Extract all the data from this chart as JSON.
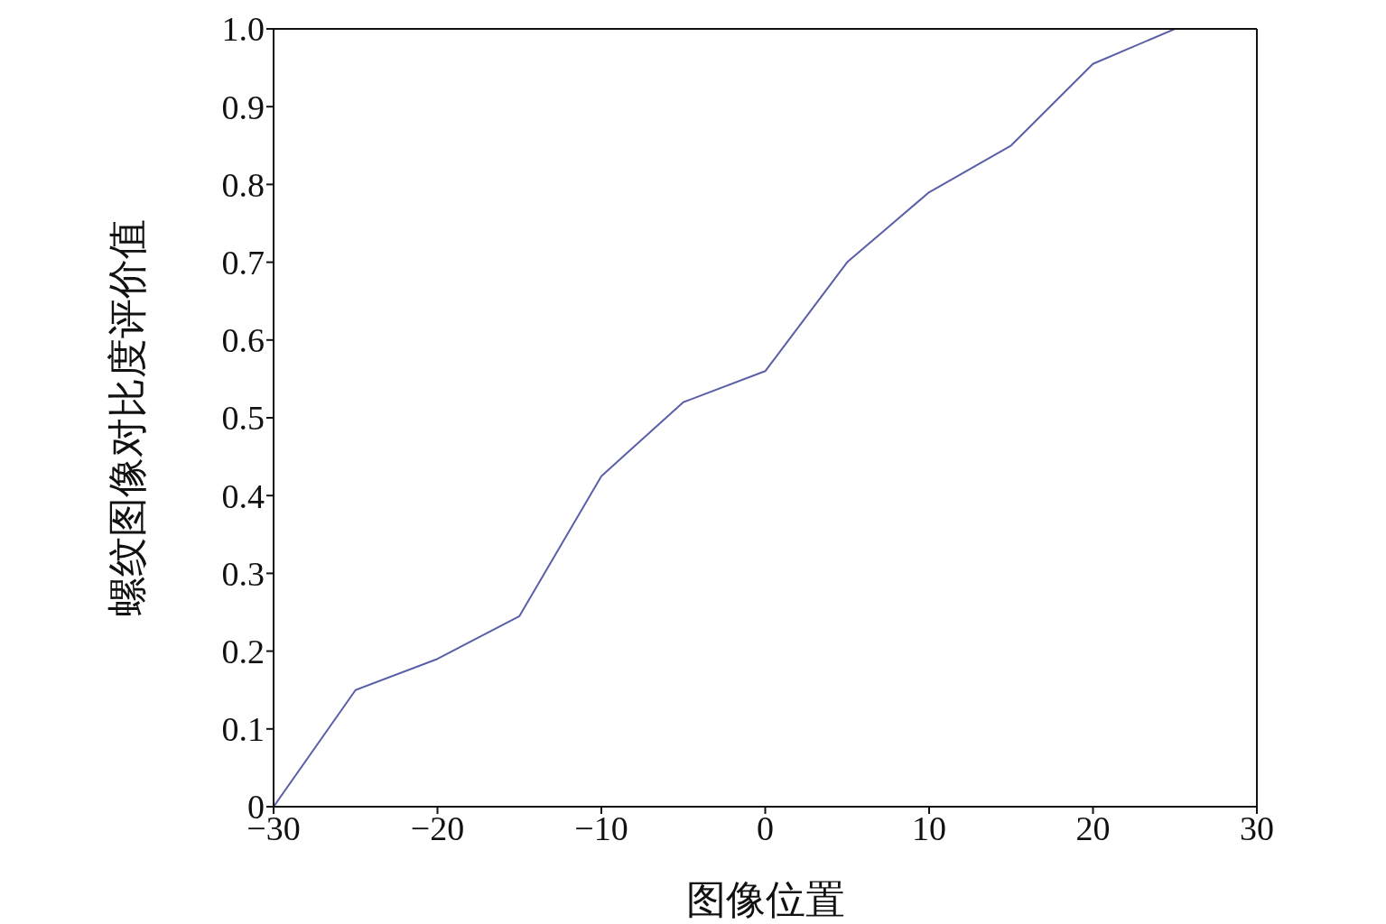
{
  "chart_data": {
    "type": "line",
    "xlabel": "图像位置",
    "ylabel": "螺纹图像对比度评价值",
    "x": [
      -30,
      -25,
      -20,
      -15,
      -10,
      -5,
      0,
      5,
      10,
      15,
      20,
      25
    ],
    "series": [
      {
        "color": "#5a5fa8",
        "values": [
          0,
          0.15,
          0.19,
          0.245,
          0.425,
          0.52,
          0.56,
          0.7,
          0.79,
          0.85,
          0.955,
          1.0
        ]
      }
    ],
    "xlim": [
      -30,
      30
    ],
    "xticks": [
      {
        "value": -30,
        "label": "−30"
      },
      {
        "value": -20,
        "label": "−20"
      },
      {
        "value": -10,
        "label": "−10"
      },
      0,
      10,
      20,
      30
    ],
    "ylim": [
      0,
      1
    ],
    "yticks": [
      0,
      0.1,
      0.2,
      0.3,
      0.4,
      0.5,
      0.6,
      0.7,
      0.8,
      0.9,
      {
        "value": 1,
        "label": "1.0"
      }
    ],
    "grid": false,
    "marker": "none",
    "line_style": "solid",
    "legend": false
  }
}
